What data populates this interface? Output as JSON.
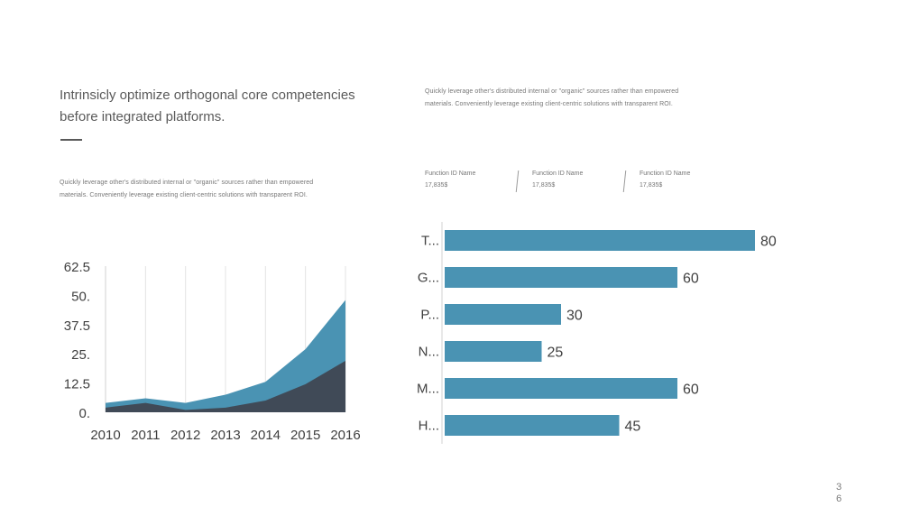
{
  "heading": "Intrinsicly optimize orthogonal core competencies before integrated platforms.",
  "body_text": "Quickly leverage  other's distributed internal  or \"organic\"  sources rather  than empowered  materials.  Conveniently  leverage  existing client-centric solutions with  transparent  ROI.",
  "function_ids": [
    {
      "name": "Function ID Name",
      "value": "17,835$"
    },
    {
      "name": "Function ID Name",
      "value": "17,835$"
    },
    {
      "name": "Function ID Name",
      "value": "17,835$"
    }
  ],
  "page_number": "36",
  "colors": {
    "teal": "#4a93b3",
    "dark": "#404a57",
    "axis_text": "#404040"
  },
  "chart_data": [
    {
      "type": "area",
      "stacked": false,
      "x": [
        "2010",
        "2011",
        "2012",
        "2013",
        "2014",
        "2015",
        "2016"
      ],
      "series": [
        {
          "values": [
            4,
            6,
            4,
            7.5,
            13,
            27,
            48
          ],
          "color": "#4a93b3"
        },
        {
          "values": [
            2,
            4,
            1,
            2,
            5,
            12,
            22
          ],
          "color": "#404a57"
        }
      ],
      "yticks": [
        "0.",
        "12.5",
        "25.",
        "37.5",
        "50.",
        "62.5"
      ],
      "ylim": [
        0,
        62.5
      ],
      "grid": "vertical"
    },
    {
      "type": "bar",
      "orientation": "horizontal",
      "categories": [
        "T...",
        "G...",
        "P...",
        "N...",
        "M...",
        "H..."
      ],
      "values": [
        80,
        60,
        30,
        25,
        60,
        45
      ],
      "data_labels": [
        "80",
        "60",
        "30",
        "25",
        "60",
        "45"
      ],
      "xlim": [
        0,
        80
      ],
      "color": "#4a93b3"
    }
  ]
}
